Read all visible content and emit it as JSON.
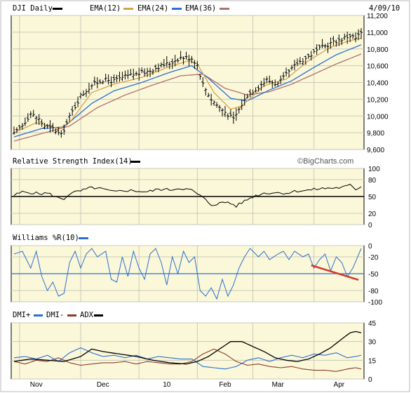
{
  "colors": {
    "panel_bg": "#fbf8d9",
    "frame": "#000000",
    "grid": "#c9c9b8",
    "ema12": "#d8a24a",
    "ema24": "#2a6fd1",
    "ema36": "#b07070",
    "rsi": "#000000",
    "williams": "#2a6fd1",
    "dmi_plus": "#2a6fd1",
    "dmi_minus": "#8b3a2a",
    "adx": "#000000",
    "trend_annotation": "#d8352b"
  },
  "chart_data": [
    {
      "type": "line",
      "panel": "price",
      "title": "DJI Daily",
      "date": "4/09/10",
      "legend": [
        "EMA(12)",
        "EMA(24)",
        "EMA(36)"
      ],
      "y_ticks": [
        "11,200",
        "11,000",
        "10,800",
        "10,600",
        "10,400",
        "10,200",
        "10,000",
        "9,800",
        "9,600"
      ],
      "y_tick_values": [
        11200,
        11000,
        10800,
        10600,
        10400,
        10200,
        10000,
        9800,
        9600
      ],
      "ylim": [
        9600,
        11200
      ],
      "x_labels": [
        "Nov",
        "Dec",
        "10",
        "Feb",
        "Mar",
        "Apr"
      ],
      "x_label_positions": [
        8,
        32,
        55,
        76,
        95,
        117
      ],
      "n_days": 126,
      "price_anchors": [
        [
          0,
          9780
        ],
        [
          3,
          9890
        ],
        [
          6,
          10030
        ],
        [
          9,
          9960
        ],
        [
          11,
          9880
        ],
        [
          14,
          9850
        ],
        [
          17,
          9770
        ],
        [
          20,
          9990
        ],
        [
          24,
          10240
        ],
        [
          28,
          10370
        ],
        [
          32,
          10430
        ],
        [
          36,
          10420
        ],
        [
          40,
          10470
        ],
        [
          44,
          10500
        ],
        [
          48,
          10530
        ],
        [
          52,
          10590
        ],
        [
          56,
          10630
        ],
        [
          60,
          10700
        ],
        [
          64,
          10690
        ],
        [
          66,
          10610
        ],
        [
          68,
          10380
        ],
        [
          71,
          10200
        ],
        [
          74,
          10100
        ],
        [
          77,
          10020
        ],
        [
          79,
          9960
        ],
        [
          81,
          10080
        ],
        [
          84,
          10250
        ],
        [
          88,
          10350
        ],
        [
          91,
          10430
        ],
        [
          95,
          10380
        ],
        [
          98,
          10490
        ],
        [
          102,
          10630
        ],
        [
          106,
          10710
        ],
        [
          110,
          10800
        ],
        [
          114,
          10870
        ],
        [
          118,
          10920
        ],
        [
          121,
          10960
        ],
        [
          123,
          10930
        ],
        [
          125,
          10990
        ]
      ],
      "ema12_anchors": [
        [
          0,
          9800
        ],
        [
          8,
          9920
        ],
        [
          16,
          9850
        ],
        [
          20,
          9920
        ],
        [
          28,
          10280
        ],
        [
          36,
          10380
        ],
        [
          46,
          10460
        ],
        [
          56,
          10590
        ],
        [
          63,
          10660
        ],
        [
          66,
          10620
        ],
        [
          72,
          10280
        ],
        [
          78,
          10080
        ],
        [
          82,
          10120
        ],
        [
          90,
          10360
        ],
        [
          98,
          10440
        ],
        [
          106,
          10660
        ],
        [
          114,
          10820
        ],
        [
          120,
          10890
        ],
        [
          125,
          10930
        ]
      ],
      "ema24_anchors": [
        [
          0,
          9750
        ],
        [
          10,
          9850
        ],
        [
          18,
          9870
        ],
        [
          28,
          10150
        ],
        [
          36,
          10300
        ],
        [
          46,
          10400
        ],
        [
          56,
          10520
        ],
        [
          64,
          10600
        ],
        [
          70,
          10450
        ],
        [
          78,
          10210
        ],
        [
          84,
          10180
        ],
        [
          92,
          10310
        ],
        [
          100,
          10420
        ],
        [
          108,
          10580
        ],
        [
          116,
          10730
        ],
        [
          125,
          10850
        ]
      ],
      "ema36_anchors": [
        [
          0,
          9700
        ],
        [
          10,
          9790
        ],
        [
          20,
          9880
        ],
        [
          30,
          10100
        ],
        [
          40,
          10250
        ],
        [
          50,
          10370
        ],
        [
          60,
          10480
        ],
        [
          68,
          10500
        ],
        [
          76,
          10330
        ],
        [
          84,
          10250
        ],
        [
          92,
          10290
        ],
        [
          100,
          10380
        ],
        [
          108,
          10500
        ],
        [
          116,
          10620
        ],
        [
          125,
          10740
        ]
      ]
    },
    {
      "type": "line",
      "panel": "rsi",
      "title": "Relative Strength Index(14)",
      "watermark": "©BigCharts.com",
      "y_ticks": [
        "100",
        "80",
        "50",
        "20",
        "0"
      ],
      "y_tick_values": [
        100,
        80,
        50,
        20,
        0
      ],
      "ylim": [
        0,
        100
      ],
      "reference_line": 50,
      "anchors": [
        [
          0,
          52
        ],
        [
          3,
          58
        ],
        [
          6,
          57
        ],
        [
          9,
          55
        ],
        [
          12,
          56
        ],
        [
          14,
          52
        ],
        [
          16,
          47
        ],
        [
          18,
          46
        ],
        [
          20,
          55
        ],
        [
          24,
          60
        ],
        [
          28,
          66
        ],
        [
          32,
          63
        ],
        [
          36,
          58
        ],
        [
          40,
          61
        ],
        [
          44,
          60
        ],
        [
          48,
          58
        ],
        [
          52,
          63
        ],
        [
          56,
          62
        ],
        [
          60,
          65
        ],
        [
          64,
          61
        ],
        [
          68,
          48
        ],
        [
          71,
          35
        ],
        [
          74,
          38
        ],
        [
          77,
          40
        ],
        [
          80,
          33
        ],
        [
          83,
          42
        ],
        [
          86,
          50
        ],
        [
          90,
          56
        ],
        [
          94,
          57
        ],
        [
          98,
          56
        ],
        [
          102,
          60
        ],
        [
          106,
          61
        ],
        [
          110,
          64
        ],
        [
          114,
          65
        ],
        [
          118,
          66
        ],
        [
          121,
          70
        ],
        [
          123,
          63
        ],
        [
          125,
          68
        ]
      ]
    },
    {
      "type": "line",
      "panel": "williams",
      "title": "Williams %R(10)",
      "y_ticks": [
        "0",
        "-20",
        "-50",
        "-80",
        "-100"
      ],
      "y_tick_values": [
        0,
        -20,
        -50,
        -80,
        -100
      ],
      "ylim": [
        -100,
        0
      ],
      "reference_line": -50,
      "annotation_line": [
        [
          107,
          -35
        ],
        [
          124,
          -61
        ]
      ],
      "anchors": [
        [
          0,
          -15
        ],
        [
          3,
          -10
        ],
        [
          6,
          -40
        ],
        [
          8,
          -10
        ],
        [
          10,
          -55
        ],
        [
          12,
          -80
        ],
        [
          14,
          -65
        ],
        [
          16,
          -90
        ],
        [
          18,
          -85
        ],
        [
          20,
          -30
        ],
        [
          22,
          -10
        ],
        [
          24,
          -40
        ],
        [
          26,
          -15
        ],
        [
          28,
          -5
        ],
        [
          30,
          -20
        ],
        [
          33,
          -10
        ],
        [
          35,
          -60
        ],
        [
          37,
          -65
        ],
        [
          39,
          -20
        ],
        [
          41,
          -55
        ],
        [
          43,
          -10
        ],
        [
          45,
          -40
        ],
        [
          47,
          -60
        ],
        [
          49,
          -15
        ],
        [
          51,
          -5
        ],
        [
          53,
          -30
        ],
        [
          55,
          -70
        ],
        [
          57,
          -20
        ],
        [
          59,
          -50
        ],
        [
          61,
          -10
        ],
        [
          63,
          -30
        ],
        [
          65,
          -20
        ],
        [
          67,
          -80
        ],
        [
          69,
          -90
        ],
        [
          71,
          -75
        ],
        [
          73,
          -95
        ],
        [
          75,
          -60
        ],
        [
          77,
          -90
        ],
        [
          79,
          -70
        ],
        [
          81,
          -40
        ],
        [
          83,
          -20
        ],
        [
          85,
          -5
        ],
        [
          88,
          -20
        ],
        [
          90,
          -10
        ],
        [
          92,
          -25
        ],
        [
          95,
          -15
        ],
        [
          97,
          -10
        ],
        [
          99,
          -25
        ],
        [
          101,
          -10
        ],
        [
          104,
          -20
        ],
        [
          106,
          -15
        ],
        [
          108,
          -40
        ],
        [
          110,
          -25
        ],
        [
          112,
          -15
        ],
        [
          114,
          -45
        ],
        [
          116,
          -20
        ],
        [
          118,
          -30
        ],
        [
          120,
          -55
        ],
        [
          122,
          -40
        ],
        [
          125,
          -5
        ]
      ]
    },
    {
      "type": "line",
      "panel": "dmi",
      "title": "DMI+",
      "legend": [
        "DMI+",
        "DMI-",
        "ADX"
      ],
      "y_ticks": [
        "45",
        "30",
        "15",
        "0"
      ],
      "y_tick_values": [
        45,
        30,
        15,
        0
      ],
      "ylim": [
        0,
        45
      ],
      "adx_anchors": [
        [
          0,
          14
        ],
        [
          6,
          16
        ],
        [
          12,
          15
        ],
        [
          18,
          14
        ],
        [
          24,
          18
        ],
        [
          28,
          24
        ],
        [
          32,
          22
        ],
        [
          38,
          20
        ],
        [
          44,
          18
        ],
        [
          50,
          15
        ],
        [
          56,
          13
        ],
        [
          62,
          12
        ],
        [
          66,
          14
        ],
        [
          70,
          18
        ],
        [
          74,
          24
        ],
        [
          78,
          30
        ],
        [
          82,
          30
        ],
        [
          86,
          26
        ],
        [
          90,
          22
        ],
        [
          94,
          17
        ],
        [
          98,
          15
        ],
        [
          102,
          14
        ],
        [
          106,
          16
        ],
        [
          110,
          20
        ],
        [
          114,
          25
        ],
        [
          118,
          32
        ],
        [
          121,
          37
        ],
        [
          123,
          38
        ],
        [
          125,
          37
        ]
      ],
      "dmi_plus_anchors": [
        [
          0,
          17
        ],
        [
          4,
          18
        ],
        [
          8,
          16
        ],
        [
          12,
          19
        ],
        [
          16,
          14
        ],
        [
          20,
          21
        ],
        [
          24,
          25
        ],
        [
          28,
          21
        ],
        [
          32,
          18
        ],
        [
          36,
          19
        ],
        [
          40,
          17
        ],
        [
          44,
          19
        ],
        [
          48,
          16
        ],
        [
          52,
          18
        ],
        [
          56,
          17
        ],
        [
          60,
          16
        ],
        [
          64,
          16
        ],
        [
          68,
          10
        ],
        [
          72,
          9
        ],
        [
          76,
          8
        ],
        [
          80,
          10
        ],
        [
          84,
          15
        ],
        [
          88,
          17
        ],
        [
          92,
          14
        ],
        [
          96,
          17
        ],
        [
          100,
          19
        ],
        [
          104,
          17
        ],
        [
          108,
          20
        ],
        [
          112,
          19
        ],
        [
          116,
          21
        ],
        [
          120,
          17
        ],
        [
          123,
          18
        ],
        [
          125,
          19
        ]
      ],
      "dmi_minus_anchors": [
        [
          0,
          14
        ],
        [
          4,
          12
        ],
        [
          8,
          15
        ],
        [
          12,
          14
        ],
        [
          16,
          17
        ],
        [
          20,
          13
        ],
        [
          24,
          11
        ],
        [
          28,
          12
        ],
        [
          32,
          13
        ],
        [
          36,
          13
        ],
        [
          40,
          14
        ],
        [
          44,
          12
        ],
        [
          48,
          14
        ],
        [
          52,
          13
        ],
        [
          56,
          12
        ],
        [
          60,
          12
        ],
        [
          64,
          14
        ],
        [
          68,
          20
        ],
        [
          72,
          24
        ],
        [
          76,
          20
        ],
        [
          80,
          14
        ],
        [
          84,
          11
        ],
        [
          88,
          12
        ],
        [
          92,
          10
        ],
        [
          96,
          9
        ],
        [
          100,
          10
        ],
        [
          104,
          8
        ],
        [
          108,
          7
        ],
        [
          112,
          7
        ],
        [
          116,
          6
        ],
        [
          120,
          8
        ],
        [
          123,
          9
        ],
        [
          125,
          8
        ]
      ]
    }
  ]
}
